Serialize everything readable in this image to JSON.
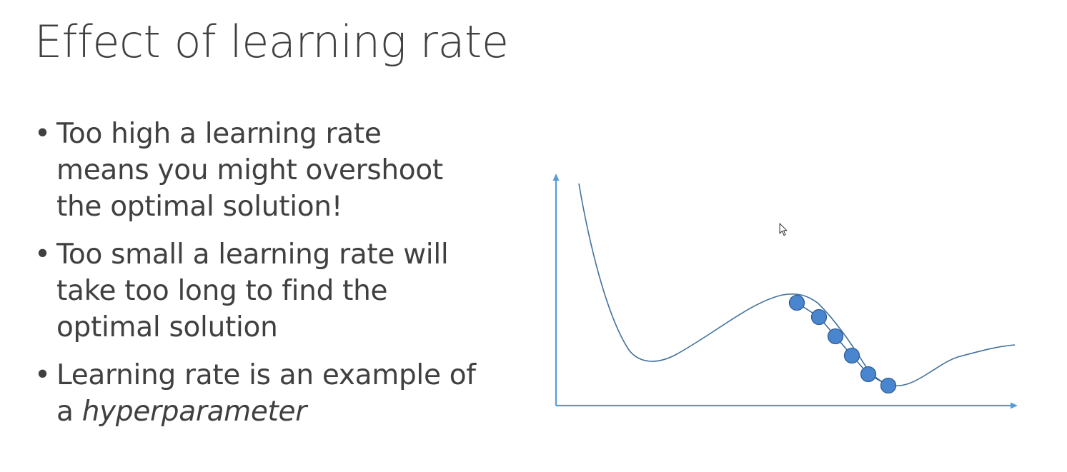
{
  "slide": {
    "title": "Effect of learning rate",
    "bullets": [
      {
        "lines": [
          "Too high a learning rate",
          "means you might overshoot",
          "the optimal solution!"
        ]
      },
      {
        "lines": [
          "Too small a learning rate will",
          "take too long to find the",
          "optimal solution"
        ]
      },
      {
        "text_before": "Learning rate is an example of",
        "text_line2_prefix": "a ",
        "emphasis": "hyperparameter"
      }
    ],
    "bullet_symbol": "•"
  },
  "figure": {
    "axis_color": "#5B9BD5",
    "curve_color": "#41719C",
    "point_fill": "#4A86CF",
    "point_stroke": "#2E5E93",
    "icons": [
      "arrow-up-icon",
      "arrow-right-icon",
      "mouse-pointer-icon"
    ]
  }
}
